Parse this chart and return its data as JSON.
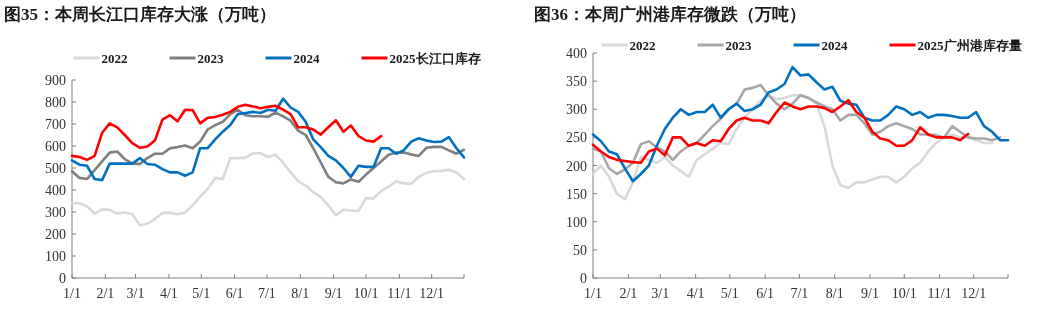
{
  "chart_data": [
    {
      "type": "line",
      "title": "图35：本周长江口库存大涨（万吨）",
      "legend": "top",
      "x": [
        "--01-01",
        "--01-08",
        "--01-15",
        "--01-22",
        "--01-29",
        "--02-05",
        "--02-12",
        "--02-19",
        "--02-26",
        "--03-05",
        "--03-12",
        "--03-19",
        "--03-26",
        "--04-02",
        "--04-09",
        "--04-16",
        "--04-23",
        "--04-30",
        "--05-07",
        "--05-14",
        "--05-21",
        "--05-28",
        "--06-04",
        "--06-11",
        "--06-18",
        "--06-25",
        "--07-02",
        "--07-09",
        "--07-16",
        "--07-23",
        "--07-30",
        "--08-06",
        "--08-13",
        "--08-20",
        "--08-27",
        "--09-03",
        "--09-10",
        "--09-17",
        "--09-24",
        "--10-01",
        "--10-08",
        "--10-15",
        "--10-22",
        "--10-29",
        "--11-05",
        "--11-12",
        "--11-19",
        "--11-26",
        "--12-03",
        "--12-10",
        "--12-17",
        "--12-24",
        "--12-31"
      ],
      "xlim": [
        "--01-01",
        "--12-31"
      ],
      "xticks": [
        {
          "value": "--01-01",
          "label": "1/1"
        },
        {
          "value": "--02-01",
          "label": "2/1"
        },
        {
          "value": "--03-01",
          "label": "3/1"
        },
        {
          "value": "--04-01",
          "label": "4/1"
        },
        {
          "value": "--05-01",
          "label": "5/1"
        },
        {
          "value": "--06-01",
          "label": "6/1"
        },
        {
          "value": "--07-01",
          "label": "7/1"
        },
        {
          "value": "--08-01",
          "label": "8/1"
        },
        {
          "value": "--09-01",
          "label": "9/1"
        },
        {
          "value": "--10-01",
          "label": "10/1"
        },
        {
          "value": "--11-01",
          "label": "11/1"
        },
        {
          "value": "--12-01",
          "label": "12/1"
        }
      ],
      "ylim": [
        0,
        900
      ],
      "yticks": [
        0,
        100,
        200,
        300,
        400,
        500,
        600,
        700,
        800,
        900
      ],
      "series": [
        {
          "name": "2022",
          "color": "#d9d9d9",
          "values": [
            340,
            340,
            325,
            293,
            312,
            310,
            293,
            298,
            290,
            240,
            247,
            268,
            295,
            297,
            290,
            298,
            330,
            370,
            405,
            455,
            450,
            545,
            545,
            547,
            567,
            567,
            550,
            560,
            525,
            480,
            440,
            420,
            390,
            368,
            330,
            285,
            310,
            307,
            305,
            363,
            362,
            395,
            415,
            440,
            430,
            428,
            460,
            478,
            485,
            487,
            492,
            480,
            450
          ]
        },
        {
          "name": "2023",
          "color": "#7f7f7f",
          "values": [
            485,
            455,
            450,
            490,
            530,
            570,
            575,
            540,
            520,
            518,
            545,
            565,
            565,
            590,
            595,
            602,
            590,
            620,
            675,
            695,
            710,
            745,
            765,
            740,
            735,
            735,
            733,
            752,
            735,
            715,
            670,
            650,
            590,
            525,
            460,
            435,
            430,
            448,
            437,
            470,
            500,
            530,
            560,
            570,
            570,
            562,
            555,
            592,
            596,
            596,
            580,
            565,
            583
          ]
        },
        {
          "name": "2024",
          "color": "#0070c0",
          "values": [
            535,
            515,
            510,
            450,
            445,
            520,
            520,
            520,
            520,
            545,
            518,
            515,
            495,
            480,
            480,
            465,
            480,
            590,
            590,
            630,
            665,
            695,
            745,
            750,
            755,
            750,
            765,
            760,
            815,
            775,
            755,
            710,
            630,
            595,
            555,
            535,
            500,
            460,
            510,
            505,
            505,
            590,
            590,
            565,
            580,
            620,
            635,
            625,
            618,
            620,
            640,
            590,
            548
          ]
        },
        {
          "name": "2025长江口库存",
          "color": "#ff0000",
          "values": [
            555,
            550,
            537,
            555,
            660,
            703,
            685,
            650,
            613,
            592,
            598,
            625,
            720,
            740,
            712,
            765,
            763,
            703,
            728,
            732,
            742,
            755,
            778,
            787,
            780,
            772,
            778,
            783,
            765,
            745,
            685,
            685,
            675,
            652,
            685,
            717,
            665,
            693,
            645,
            625,
            620,
            645,
            null,
            null,
            null,
            null,
            null,
            null,
            null,
            null,
            null,
            null,
            null
          ]
        }
      ]
    },
    {
      "type": "line",
      "title": "图36：本周广州港库存微跌（万吨）",
      "legend": "top",
      "x": [
        "--01-01",
        "--01-08",
        "--01-15",
        "--01-22",
        "--01-29",
        "--02-05",
        "--02-12",
        "--02-19",
        "--02-26",
        "--03-05",
        "--03-12",
        "--03-19",
        "--03-26",
        "--04-02",
        "--04-09",
        "--04-16",
        "--04-23",
        "--04-30",
        "--05-07",
        "--05-14",
        "--05-21",
        "--05-28",
        "--06-04",
        "--06-11",
        "--06-18",
        "--06-25",
        "--07-02",
        "--07-09",
        "--07-16",
        "--07-23",
        "--07-30",
        "--08-06",
        "--08-13",
        "--08-20",
        "--08-27",
        "--09-03",
        "--09-10",
        "--09-17",
        "--09-24",
        "--10-01",
        "--10-08",
        "--10-15",
        "--10-22",
        "--10-29",
        "--11-05",
        "--11-12",
        "--11-19",
        "--11-26",
        "--12-03",
        "--12-10",
        "--12-17",
        "--12-24",
        "--12-31"
      ],
      "xlim": [
        "--01-01",
        "--12-31"
      ],
      "xticks": [
        {
          "value": "--01-01",
          "label": "1/1"
        },
        {
          "value": "--02-01",
          "label": "2/1"
        },
        {
          "value": "--03-01",
          "label": "3/1"
        },
        {
          "value": "--04-01",
          "label": "4/1"
        },
        {
          "value": "--05-01",
          "label": "5/1"
        },
        {
          "value": "--06-01",
          "label": "6/1"
        },
        {
          "value": "--07-01",
          "label": "7/1"
        },
        {
          "value": "--08-01",
          "label": "8/1"
        },
        {
          "value": "--09-01",
          "label": "9/1"
        },
        {
          "value": "--10-01",
          "label": "10/1"
        },
        {
          "value": "--11-01",
          "label": "11/1"
        },
        {
          "value": "--12-01",
          "label": "12/1"
        }
      ],
      "ylim": [
        0,
        400
      ],
      "yticks": [
        0,
        50,
        100,
        150,
        200,
        250,
        300,
        350,
        400
      ],
      "series": [
        {
          "name": "2022",
          "color": "#d9d9d9",
          "values": [
            185,
            200,
            180,
            150,
            140,
            170,
            215,
            210,
            205,
            215,
            200,
            190,
            180,
            210,
            220,
            230,
            240,
            238,
            265,
            285,
            300,
            315,
            325,
            318,
            320,
            325,
            325,
            320,
            310,
            270,
            200,
            165,
            160,
            170,
            170,
            175,
            180,
            180,
            170,
            180,
            195,
            205,
            225,
            240,
            250,
            255,
            250,
            250,
            245,
            240,
            240,
            null,
            null
          ]
        },
        {
          "name": "2023",
          "color": "#a6a6a6",
          "values": [
            230,
            225,
            195,
            185,
            193,
            205,
            238,
            243,
            232,
            225,
            210,
            225,
            235,
            240,
            255,
            270,
            283,
            300,
            310,
            335,
            338,
            343,
            325,
            310,
            300,
            310,
            325,
            320,
            312,
            305,
            300,
            280,
            290,
            290,
            275,
            255,
            260,
            270,
            275,
            270,
            265,
            255,
            255,
            254,
            250,
            270,
            260,
            250,
            248,
            248,
            245,
            250,
            null
          ]
        },
        {
          "name": "2024",
          "color": "#0070c0",
          "values": [
            255,
            243,
            225,
            220,
            195,
            172,
            185,
            200,
            235,
            265,
            285,
            300,
            290,
            295,
            295,
            308,
            285,
            300,
            310,
            297,
            300,
            308,
            330,
            335,
            345,
            375,
            360,
            362,
            348,
            335,
            340,
            315,
            310,
            308,
            285,
            280,
            280,
            290,
            305,
            300,
            290,
            295,
            285,
            290,
            290,
            288,
            285,
            285,
            295,
            270,
            260,
            245,
            245
          ]
        },
        {
          "name": "2025广州港库存量",
          "color": "#ff0000",
          "values": [
            237,
            225,
            215,
            210,
            208,
            206,
            205,
            225,
            230,
            218,
            250,
            250,
            235,
            240,
            235,
            245,
            243,
            265,
            280,
            285,
            280,
            280,
            275,
            295,
            312,
            305,
            300,
            305,
            305,
            302,
            295,
            305,
            316,
            295,
            285,
            260,
            248,
            245,
            235,
            235,
            245,
            268,
            255,
            250,
            250,
            250,
            245,
            256,
            null,
            null,
            null,
            null,
            null
          ]
        }
      ]
    }
  ]
}
